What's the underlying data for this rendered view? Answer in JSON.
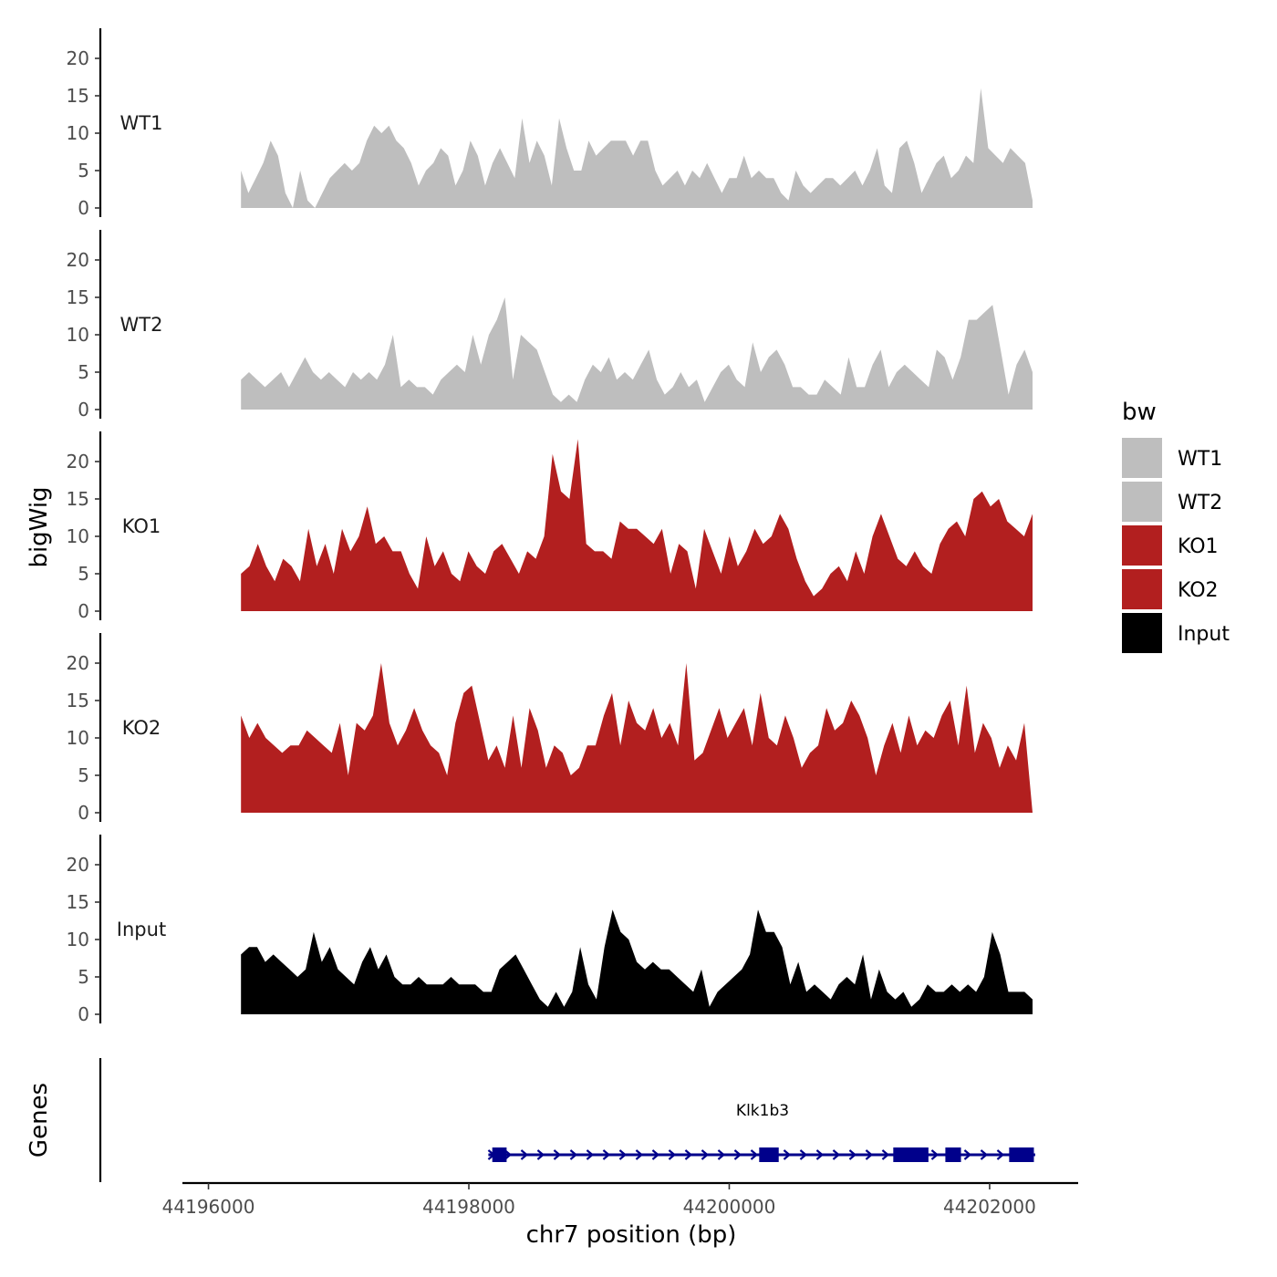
{
  "chart_data": {
    "type": "area",
    "title": "",
    "ylabel": "bigWig",
    "xlabel": "chr7 position (bp)",
    "ylim": [
      0,
      24
    ],
    "yticks": [
      0,
      5,
      10,
      15,
      20
    ],
    "xlim": [
      44195800,
      44202680
    ],
    "xticks": [
      {
        "value": 44196000,
        "label": "44196000"
      },
      {
        "value": 44198000,
        "label": "44198000"
      },
      {
        "value": 44200000,
        "label": "44200000"
      },
      {
        "value": 44202000,
        "label": "44202000"
      }
    ],
    "x_start": 44196250,
    "x_end": 44202330,
    "legend": {
      "title": "bw",
      "position": "right",
      "entries": [
        {
          "label": "WT1",
          "color": "#bebebe"
        },
        {
          "label": "WT2",
          "color": "#bebebe"
        },
        {
          "label": "KO1",
          "color": "#b21f1f"
        },
        {
          "label": "KO2",
          "color": "#b21f1f"
        },
        {
          "label": "Input",
          "color": "#000000"
        }
      ]
    },
    "series": [
      {
        "name": "WT1",
        "color": "#bebebe",
        "values": [
          5,
          2,
          4,
          6,
          9,
          7,
          2,
          0,
          5,
          1,
          0,
          2,
          4,
          5,
          6,
          5,
          6,
          9,
          11,
          10,
          11,
          9,
          8,
          6,
          3,
          5,
          6,
          8,
          7,
          3,
          5,
          9,
          7,
          3,
          6,
          8,
          6,
          4,
          12,
          6,
          9,
          7,
          3,
          12,
          8,
          5,
          5,
          9,
          7,
          8,
          9,
          9,
          9,
          7,
          9,
          9,
          5,
          3,
          4,
          5,
          3,
          5,
          4,
          6,
          4,
          2,
          4,
          4,
          7,
          4,
          5,
          4,
          4,
          2,
          1,
          5,
          3,
          2,
          3,
          4,
          4,
          3,
          4,
          5,
          3,
          5,
          8,
          3,
          2,
          8,
          9,
          6,
          2,
          4,
          6,
          7,
          4,
          5,
          7,
          6,
          16,
          8,
          7,
          6,
          8,
          7,
          6,
          1
        ]
      },
      {
        "name": "WT2",
        "color": "#bebebe",
        "values": [
          4,
          5,
          4,
          3,
          4,
          5,
          3,
          5,
          7,
          5,
          4,
          5,
          4,
          3,
          5,
          4,
          5,
          4,
          6,
          10,
          3,
          4,
          3,
          3,
          2,
          4,
          5,
          6,
          5,
          10,
          6,
          10,
          12,
          15,
          4,
          10,
          9,
          8,
          5,
          2,
          1,
          2,
          1,
          4,
          6,
          5,
          7,
          4,
          5,
          4,
          6,
          8,
          4,
          2,
          3,
          5,
          3,
          4,
          1,
          3,
          5,
          6,
          4,
          3,
          9,
          5,
          7,
          8,
          6,
          3,
          3,
          2,
          2,
          4,
          3,
          2,
          7,
          3,
          3,
          6,
          8,
          3,
          5,
          6,
          5,
          4,
          3,
          8,
          7,
          4,
          7,
          12,
          12,
          13,
          14,
          8,
          2,
          6,
          8,
          5
        ]
      },
      {
        "name": "KO1",
        "color": "#b21f1f",
        "values": [
          5,
          6,
          9,
          6,
          4,
          7,
          6,
          4,
          11,
          6,
          9,
          5,
          11,
          8,
          10,
          14,
          9,
          10,
          8,
          8,
          5,
          3,
          10,
          6,
          8,
          5,
          4,
          8,
          6,
          5,
          8,
          9,
          7,
          5,
          8,
          7,
          10,
          21,
          16,
          15,
          23,
          9,
          8,
          8,
          7,
          12,
          11,
          11,
          10,
          9,
          11,
          5,
          9,
          8,
          3,
          11,
          8,
          5,
          10,
          6,
          8,
          11,
          9,
          10,
          13,
          11,
          7,
          4,
          2,
          3,
          5,
          6,
          4,
          8,
          5,
          10,
          13,
          10,
          7,
          6,
          8,
          6,
          5,
          9,
          11,
          12,
          10,
          15,
          16,
          14,
          15,
          12,
          11,
          10,
          13
        ]
      },
      {
        "name": "KO2",
        "color": "#b21f1f",
        "values": [
          13,
          10,
          12,
          10,
          9,
          8,
          9,
          9,
          11,
          10,
          9,
          8,
          12,
          5,
          12,
          11,
          13,
          20,
          12,
          9,
          11,
          14,
          11,
          9,
          8,
          5,
          12,
          16,
          17,
          12,
          7,
          9,
          6,
          13,
          6,
          14,
          11,
          6,
          9,
          8,
          5,
          6,
          9,
          9,
          13,
          16,
          9,
          15,
          12,
          11,
          14,
          10,
          12,
          9,
          20,
          7,
          8,
          11,
          14,
          10,
          12,
          14,
          9,
          16,
          10,
          9,
          13,
          10,
          6,
          8,
          9,
          14,
          11,
          12,
          15,
          13,
          10,
          5,
          9,
          12,
          8,
          13,
          9,
          11,
          10,
          13,
          15,
          9,
          17,
          8,
          12,
          10,
          6,
          9,
          7,
          12,
          0
        ]
      },
      {
        "name": "Input",
        "color": "#000000",
        "values": [
          8,
          9,
          9,
          7,
          8,
          7,
          6,
          5,
          6,
          11,
          7,
          9,
          6,
          5,
          4,
          7,
          9,
          6,
          8,
          5,
          4,
          4,
          5,
          4,
          4,
          4,
          5,
          4,
          4,
          4,
          3,
          3,
          6,
          7,
          8,
          6,
          4,
          2,
          1,
          3,
          1,
          3,
          9,
          4,
          2,
          9,
          14,
          11,
          10,
          7,
          6,
          7,
          6,
          6,
          5,
          4,
          3,
          6,
          1,
          3,
          4,
          5,
          6,
          8,
          14,
          11,
          11,
          9,
          4,
          7,
          3,
          4,
          3,
          2,
          4,
          5,
          4,
          8,
          2,
          6,
          3,
          2,
          3,
          1,
          2,
          4,
          3,
          3,
          4,
          3,
          4,
          3,
          5,
          11,
          8,
          3,
          3,
          3,
          2
        ]
      }
    ],
    "gene_track": {
      "label": "Genes",
      "gene_name": "Klk1b3",
      "strand": "+",
      "start": 44198150,
      "end": 44202350,
      "exons": [
        [
          44198180,
          44198290
        ],
        [
          44200230,
          44200380
        ],
        [
          44201260,
          44201530
        ],
        [
          44201660,
          44201780
        ],
        [
          44202150,
          44202340
        ]
      ]
    }
  }
}
